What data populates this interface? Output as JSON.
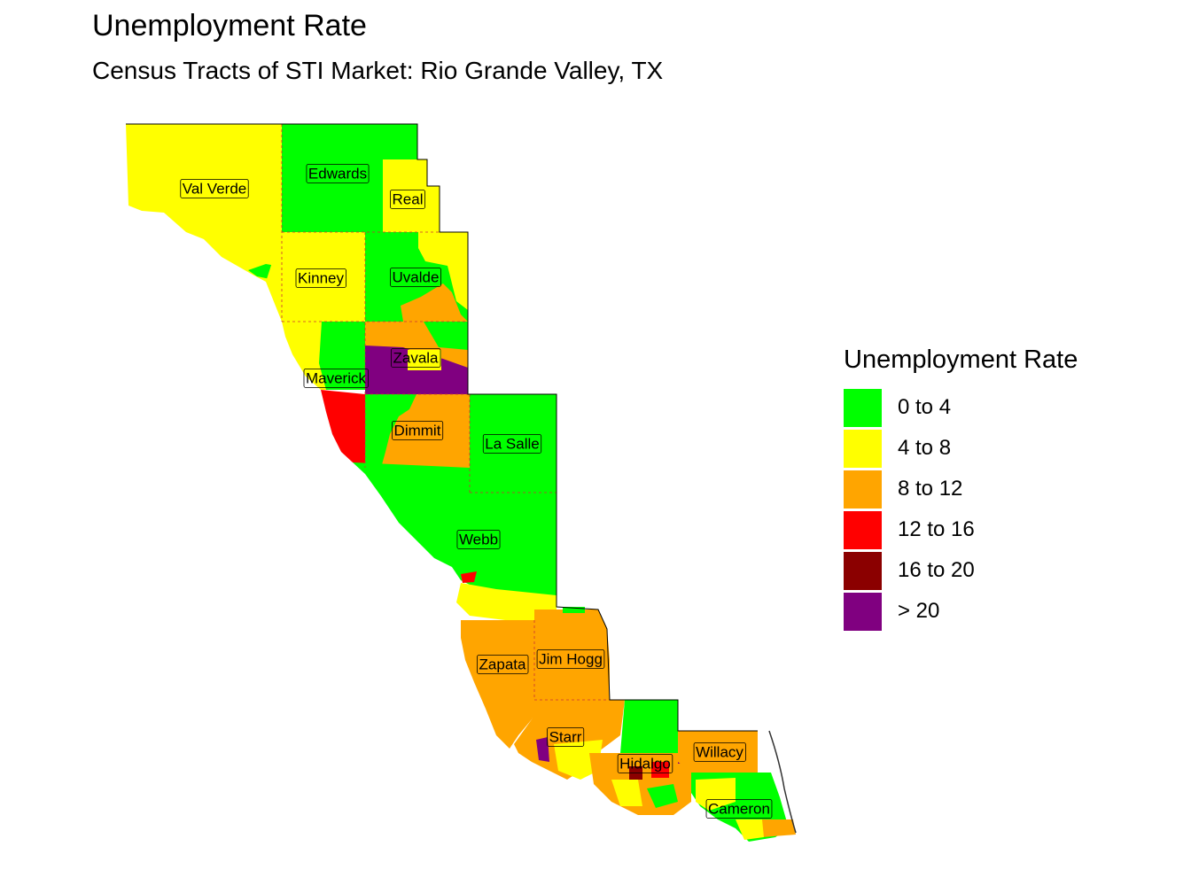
{
  "title": "Unemployment Rate",
  "subtitle": "Census Tracts of STI Market: Rio Grande Valley, TX",
  "legend": {
    "title": "Unemployment Rate",
    "items": [
      {
        "label": "0 to 4",
        "color": "#00ff00"
      },
      {
        "label": "4 to 8",
        "color": "#ffff00"
      },
      {
        "label": "8 to 12",
        "color": "#ffa500"
      },
      {
        "label": "12 to 16",
        "color": "#ff0000"
      },
      {
        "label": "16 to 20",
        "color": "#8b0000"
      },
      {
        "label": "> 20",
        "color": "#800080"
      }
    ]
  },
  "counties": [
    {
      "name": "Val Verde"
    },
    {
      "name": "Edwards"
    },
    {
      "name": "Real"
    },
    {
      "name": "Kinney"
    },
    {
      "name": "Uvalde"
    },
    {
      "name": "Zavala"
    },
    {
      "name": "Maverick"
    },
    {
      "name": "Dimmit"
    },
    {
      "name": "La Salle"
    },
    {
      "name": "Webb"
    },
    {
      "name": "Zapata"
    },
    {
      "name": "Jim Hogg"
    },
    {
      "name": "Starr"
    },
    {
      "name": "Hidalgo"
    },
    {
      "name": "Willacy"
    },
    {
      "name": "Cameron"
    }
  ]
}
